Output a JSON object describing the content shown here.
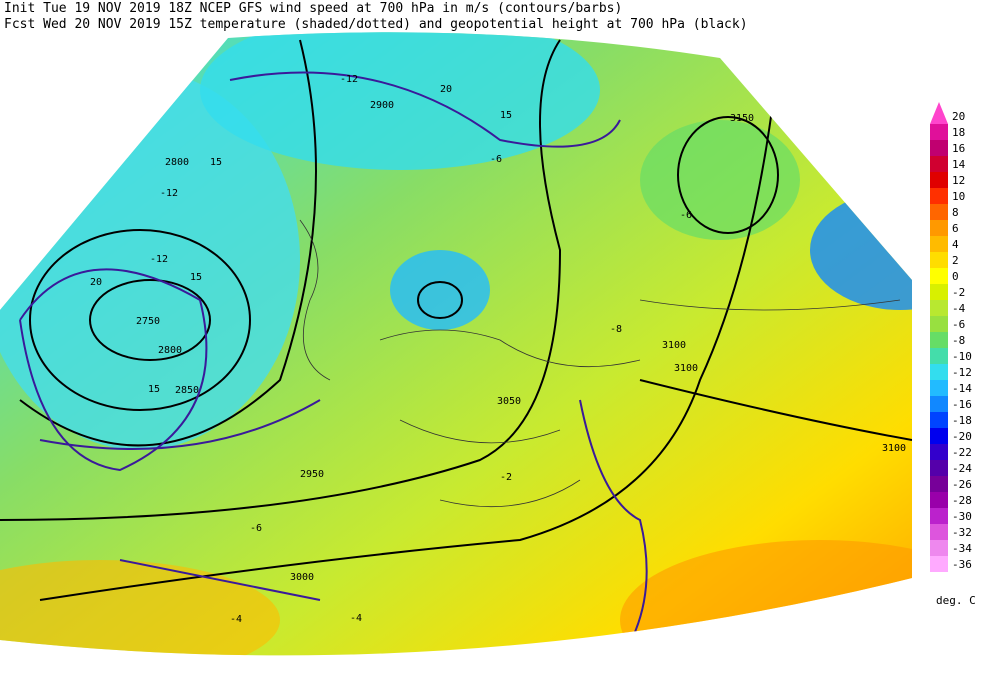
{
  "header": {
    "line1": "Init  Tue 19 NOV 2019 18Z  NCEP GFS wind speed at 700 hPa in m/s (contours/barbs)",
    "line2": "Fcst Wed 20 NOV 2019 15Z  temperature (shaded/dotted) and geopotential height at 700 hPa (black)"
  },
  "colorbar": {
    "labels": [
      20,
      18,
      16,
      14,
      12,
      10,
      8,
      6,
      4,
      2,
      0,
      -2,
      -4,
      -6,
      -8,
      -10,
      -12,
      -14,
      -16,
      -18,
      -20,
      -22,
      -24,
      -26,
      -28,
      -30,
      -32,
      -34,
      -36
    ],
    "colors": [
      "#ff44cc",
      "#e0109a",
      "#c00070",
      "#d00030",
      "#e00000",
      "#ff3000",
      "#ff6600",
      "#ff9900",
      "#ffbb00",
      "#ffdd00",
      "#ffff00",
      "#d8f000",
      "#b8e830",
      "#98e040",
      "#66dd66",
      "#44ddaa",
      "#33ddee",
      "#22bbff",
      "#1188ff",
      "#0044ff",
      "#0000ee",
      "#3300cc",
      "#5500aa",
      "#770099",
      "#9900aa",
      "#bb22cc",
      "#dd55dd",
      "#ee88ee",
      "#ffaaff"
    ],
    "unit": "deg. C"
  },
  "map": {
    "labels": [
      "2800",
      "2750",
      "2800",
      "2850",
      "2900",
      "3150",
      "3100",
      "3100",
      "3100",
      "3050",
      "3000",
      "2950",
      "15",
      "15",
      "15",
      "20",
      "20",
      "15",
      "-12",
      "-12",
      "-12",
      "-6",
      "-6",
      "-4",
      "-2",
      "-8",
      "-6",
      "-4"
    ]
  }
}
